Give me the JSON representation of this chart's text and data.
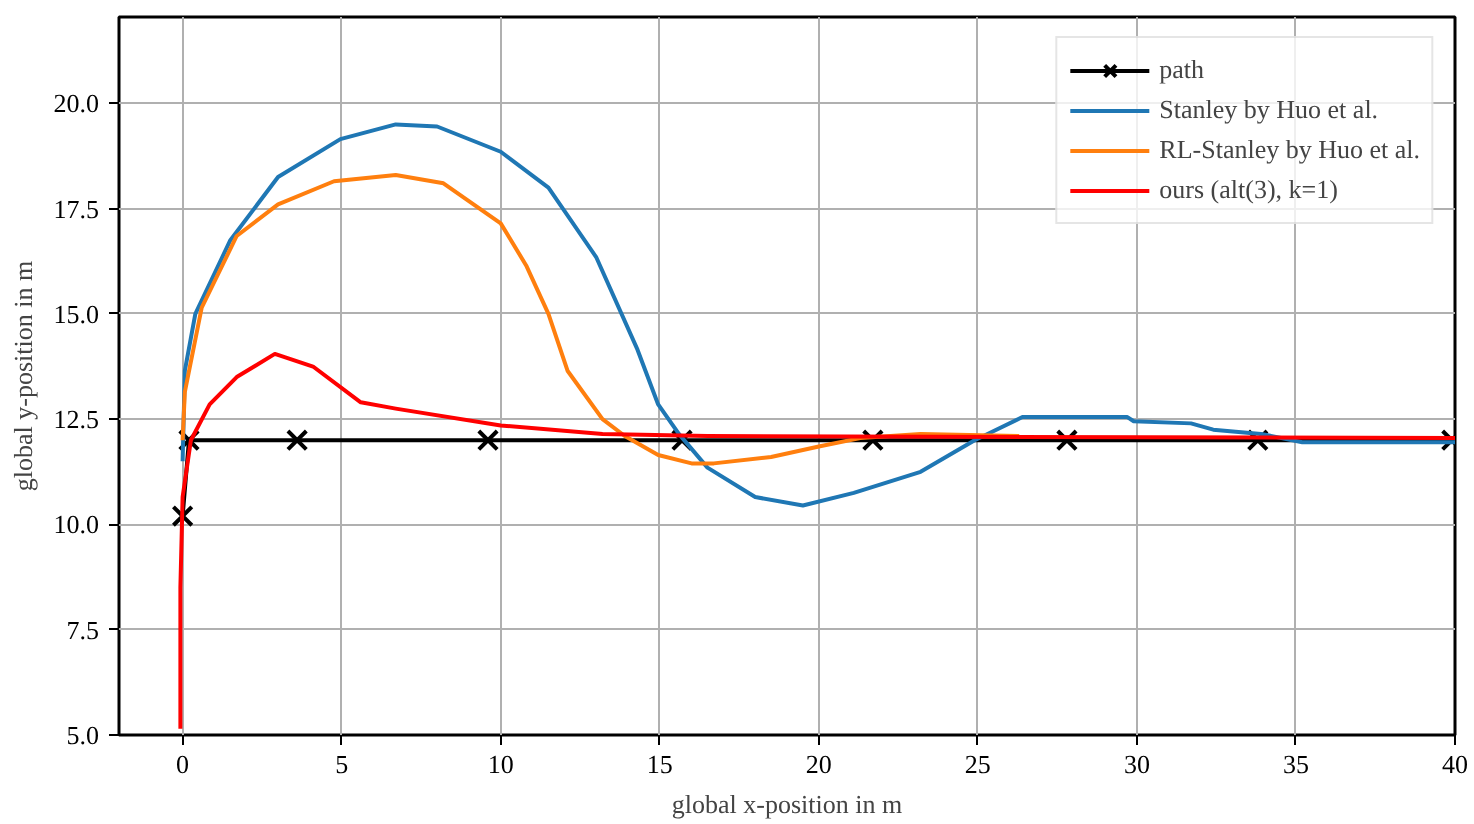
{
  "chart_data": {
    "type": "line",
    "xlabel": "global x-position in m",
    "ylabel": "global y-position in m",
    "xlim": [
      -2,
      40
    ],
    "ylim": [
      5,
      22.05
    ],
    "xticks": [
      0,
      5,
      10,
      15,
      20,
      25,
      30,
      35,
      40
    ],
    "yticks": [
      {
        "value": 5,
        "label": "5.0"
      },
      {
        "value": 7.5,
        "label": "7.5"
      },
      {
        "value": 10,
        "label": "10.0"
      },
      {
        "value": 12.5,
        "label": "12.5"
      },
      {
        "value": 15,
        "label": "15.0"
      },
      {
        "value": 17.5,
        "label": "17.5"
      },
      {
        "value": 20,
        "label": "20.0"
      }
    ],
    "grid": true,
    "legend": "top right",
    "series": [
      {
        "name": "path",
        "color": "#000000",
        "marker": "cross",
        "x": [
          0,
          0.2,
          3.6,
          9.6,
          15.7,
          21.7,
          27.8,
          33.8,
          39.9
        ],
        "values": [
          10.2,
          12,
          12,
          12,
          12,
          12,
          12,
          12,
          12
        ]
      },
      {
        "name": "Stanley by Huo et al.",
        "color": "#1f77b4",
        "x": [
          0,
          0.07,
          0.4,
          1.5,
          3.0,
          4.96,
          6.7,
          8.0,
          10,
          11.5,
          13,
          14.3,
          14.95,
          15.6,
          16.5,
          18.0,
          19.5,
          21.1,
          23.2,
          24.9,
          26.4,
          29.7,
          29.9,
          31.7,
          32.4,
          33.9,
          35.2,
          40
        ],
        "values": [
          11.5,
          13.65,
          15,
          16.75,
          18.25,
          19.15,
          19.5,
          19.45,
          18.85,
          18,
          16.35,
          14.15,
          12.85,
          12.15,
          11.35,
          10.65,
          10.45,
          10.75,
          11.25,
          12.0,
          12.55,
          12.55,
          12.45,
          12.4,
          12.25,
          12.15,
          11.95,
          11.95
        ]
      },
      {
        "name": "RL-Stanley by Huo et al.",
        "color": "#ff7f0e",
        "x": [
          0,
          0.07,
          0.6,
          1.7,
          3.0,
          4.76,
          6.7,
          8.2,
          10,
          10.8,
          11.5,
          12.1,
          13.2,
          13.9,
          14.95,
          16.0,
          16.7,
          18.5,
          20,
          21.3,
          23.2,
          26.3
        ],
        "values": [
          12,
          13.15,
          15.15,
          16.85,
          17.6,
          18.15,
          18.3,
          18.1,
          17.15,
          16.15,
          15.0,
          13.65,
          12.5,
          12.1,
          11.65,
          11.45,
          11.45,
          11.6,
          11.85,
          12.05,
          12.15,
          12.1
        ]
      },
      {
        "name": "ours (alt(3), k=1)",
        "color": "#ff0000",
        "x": [
          -0.07,
          -0.07,
          0,
          0.26,
          0.85,
          1.7,
          2.9,
          4.1,
          5.6,
          6.7,
          10,
          13.2,
          16.5,
          40
        ],
        "values": [
          5.15,
          8.5,
          10.65,
          12.0,
          12.85,
          13.5,
          14.05,
          13.75,
          12.9,
          12.75,
          12.35,
          12.15,
          12.1,
          12.05
        ]
      }
    ]
  }
}
